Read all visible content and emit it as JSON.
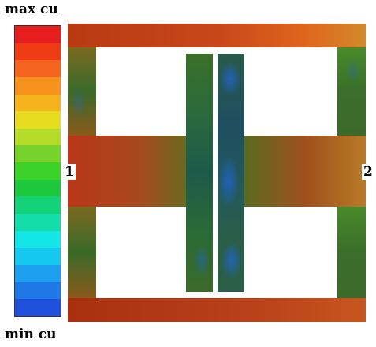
{
  "colorbar": {
    "max_label": "max cu",
    "min_label": "min cu",
    "colors": [
      "#e61e1e",
      "#f03c14",
      "#f5641e",
      "#f7921c",
      "#f5b41e",
      "#e8dc20",
      "#b4dc28",
      "#78d22c",
      "#3cd22a",
      "#1ec83c",
      "#14d278",
      "#14dcaa",
      "#14e6e6",
      "#14c8f0",
      "#1ea0f0",
      "#1e78e6",
      "#1e50dc"
    ]
  },
  "ports": {
    "left": "1",
    "right": "2"
  }
}
